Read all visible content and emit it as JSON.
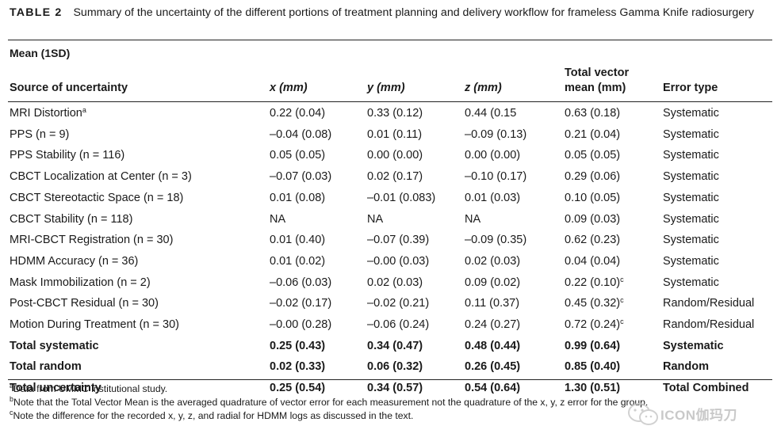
{
  "caption": {
    "label": "TABLE 2",
    "text": "Summary of the uncertainty of the different portions of treatment planning and delivery workflow for frameless Gamma Knife radiosurgery"
  },
  "group_header": "Mean (1SD)",
  "headers": {
    "source": "Source of uncertainty",
    "x": "x (mm)",
    "y": "y (mm)",
    "z": "z (mm)",
    "total_line1": "Total vector",
    "total_line2": "mean (mm)",
    "type": "Error type"
  },
  "rows": [
    {
      "name": "MRI Distortion",
      "sup": "a",
      "x": "0.22 (0.04)",
      "y": "0.33 (0.12)",
      "z": "0.44 (0.15",
      "total": "0.63 (0.18)",
      "tsup": "",
      "type": "Systematic"
    },
    {
      "name": "PPS (n = 9)",
      "sup": "",
      "x": "–0.04 (0.08)",
      "y": "0.01 (0.11)",
      "z": "–0.09 (0.13)",
      "total": "0.21 (0.04)",
      "tsup": "",
      "type": "Systematic"
    },
    {
      "name": "PPS Stability (n = 116)",
      "sup": "",
      "x": "0.05 (0.05)",
      "y": "0.00 (0.00)",
      "z": "0.00 (0.00)",
      "total": "0.05 (0.05)",
      "tsup": "",
      "type": "Systematic"
    },
    {
      "name": "CBCT Localization at Center (n = 3)",
      "sup": "",
      "x": "–0.07 (0.03)",
      "y": "0.02 (0.17)",
      "z": "–0.10 (0.17)",
      "total": "0.29 (0.06)",
      "tsup": "",
      "type": "Systematic"
    },
    {
      "name": "CBCT Stereotactic Space (n = 18)",
      "sup": "",
      "x": "0.01 (0.08)",
      "y": "–0.01 (0.083)",
      "z": "0.01 (0.03)",
      "total": "0.10 (0.05)",
      "tsup": "",
      "type": "Systematic"
    },
    {
      "name": "CBCT Stability (n = 118)",
      "sup": "",
      "x": "NA",
      "y": "NA",
      "z": "NA",
      "total": "0.09 (0.03)",
      "tsup": "",
      "type": "Systematic"
    },
    {
      "name": "MRI-CBCT Registration (n = 30)",
      "sup": "",
      "x": "0.01 (0.40)",
      "y": "–0.07 (0.39)",
      "z": "–0.09 (0.35)",
      "total": "0.62 (0.23)",
      "tsup": "",
      "type": "Systematic"
    },
    {
      "name": "HDMM Accuracy (n = 36)",
      "sup": "",
      "x": "0.01 (0.02)",
      "y": "–0.00 (0.03)",
      "z": "0.02 (0.03)",
      "total": "0.04 (0.04)",
      "tsup": "",
      "type": "Systematic"
    },
    {
      "name": "Mask Immobilization (n = 2)",
      "sup": "",
      "x": "–0.06 (0.03)",
      "y": "0.02 (0.03)",
      "z": "0.09 (0.02)",
      "total": "0.22 (0.10)",
      "tsup": "c",
      "type": "Systematic"
    },
    {
      "name": "Post-CBCT Residual (n = 30)",
      "sup": "",
      "x": "–0.02 (0.17)",
      "y": "–0.02 (0.21)",
      "z": "0.11 (0.37)",
      "total": "0.45 (0.32)",
      "tsup": "c",
      "type": "Random/Residual"
    },
    {
      "name": "Motion During Treatment (n = 30)",
      "sup": "",
      "x": "–0.00 (0.28)",
      "y": "–0.06 (0.24)",
      "z": "0.24 (0.27)",
      "total": "0.72 (0.24)",
      "tsup": "c",
      "type": "Random/Residual"
    },
    {
      "name": "Total systematic",
      "sup": "",
      "x": "0.25 (0.43)",
      "y": "0.34 (0.47)",
      "z": "0.48 (0.44)",
      "total": "0.99 (0.64)",
      "tsup": "",
      "type": "Systematic",
      "bold": true
    },
    {
      "name": "Total random",
      "sup": "",
      "x": "0.02 (0.33)",
      "y": "0.06 (0.32)",
      "z": "0.26 (0.45)",
      "total": "0.85 (0.40)",
      "tsup": "",
      "type": "Random",
      "bold": true
    },
    {
      "name": "Total uncertainty",
      "sup": "",
      "x": "0.25 (0.54)",
      "y": "0.34 (0.57)",
      "z": "0.54 (0.64)",
      "total": "1.30 (0.51)",
      "tsup": "",
      "type": "Total Combined",
      "bold": true
    }
  ],
  "footnotes": [
    {
      "mark": "a",
      "text": "Data from UMMC institutional study."
    },
    {
      "mark": "b",
      "text": "Note that the Total Vector Mean is the averaged quadrature of vector error for each measurement not the quadrature of the x, y, z error for the group."
    },
    {
      "mark": "c",
      "text": "Note the difference for the recorded x, y, z, and radial for HDMM logs as discussed in the text."
    }
  ],
  "watermark": {
    "text": "ICON伽玛刀",
    "icon": "wechat-icon"
  }
}
